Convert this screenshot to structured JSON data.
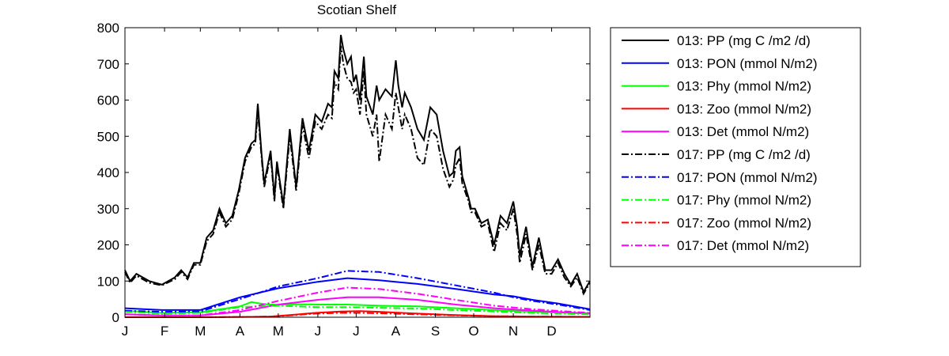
{
  "chart_data": {
    "type": "line",
    "title": "Scotian Shelf",
    "xlabel": "",
    "ylabel": "",
    "ylim": [
      0,
      800
    ],
    "yticks": [
      0,
      100,
      200,
      300,
      400,
      500,
      600,
      700,
      800
    ],
    "xlim": [
      1,
      365
    ],
    "month_ticks": [
      {
        "day": 1,
        "label": "J"
      },
      {
        "day": 32,
        "label": "F"
      },
      {
        "day": 60,
        "label": "M"
      },
      {
        "day": 91,
        "label": "A"
      },
      {
        "day": 121,
        "label": "M"
      },
      {
        "day": 152,
        "label": "J"
      },
      {
        "day": 182,
        "label": "J"
      },
      {
        "day": 213,
        "label": "A"
      },
      {
        "day": 244,
        "label": "S"
      },
      {
        "day": 274,
        "label": "O"
      },
      {
        "day": 305,
        "label": "N"
      },
      {
        "day": 335,
        "label": "D"
      }
    ],
    "legend_position": "outside-right",
    "grid": false,
    "series": [
      {
        "name": "013: PP (mg C /m2 /d)",
        "color": "#000000",
        "style": "solid",
        "x": [
          1,
          5,
          10,
          20,
          30,
          40,
          45,
          50,
          55,
          60,
          65,
          70,
          75,
          80,
          85,
          90,
          95,
          100,
          103,
          105,
          108,
          110,
          115,
          118,
          120,
          125,
          130,
          135,
          140,
          145,
          150,
          155,
          160,
          163,
          165,
          168,
          170,
          172,
          175,
          178,
          180,
          182,
          185,
          188,
          190,
          195,
          198,
          200,
          205,
          210,
          213,
          215,
          218,
          220,
          225,
          230,
          235,
          240,
          245,
          250,
          255,
          258,
          260,
          263,
          265,
          270,
          272,
          275,
          280,
          285,
          290,
          295,
          300,
          305,
          308,
          310,
          315,
          320,
          325,
          330,
          335,
          340,
          345,
          350,
          355,
          360,
          365
        ],
        "y": [
          130,
          100,
          120,
          100,
          90,
          110,
          130,
          110,
          150,
          150,
          220,
          240,
          300,
          260,
          280,
          350,
          440,
          480,
          490,
          590,
          450,
          370,
          460,
          330,
          430,
          310,
          520,
          360,
          550,
          460,
          560,
          540,
          590,
          580,
          680,
          660,
          780,
          740,
          700,
          720,
          650,
          670,
          600,
          720,
          610,
          560,
          640,
          600,
          630,
          610,
          710,
          640,
          580,
          620,
          580,
          520,
          490,
          580,
          560,
          460,
          390,
          400,
          460,
          470,
          390,
          330,
          300,
          300,
          260,
          270,
          200,
          280,
          260,
          320,
          250,
          170,
          250,
          140,
          220,
          130,
          130,
          160,
          120,
          90,
          120,
          70,
          100
        ]
      },
      {
        "name": "013: PON (mmol N/m2)",
        "color": "#0000ff",
        "style": "solid",
        "x": [
          1,
          30,
          60,
          91,
          121,
          152,
          175,
          200,
          230,
          260,
          290,
          305,
          320,
          340,
          365
        ],
        "y": [
          25,
          20,
          20,
          55,
          80,
          98,
          108,
          102,
          92,
          78,
          63,
          58,
          48,
          38,
          22
        ]
      },
      {
        "name": "013: Phy (mmol N/m2)",
        "color": "#00ff00",
        "style": "solid",
        "x": [
          1,
          30,
          60,
          91,
          100,
          110,
          121,
          135,
          152,
          175,
          200,
          230,
          260,
          290,
          320,
          365
        ],
        "y": [
          18,
          12,
          14,
          30,
          42,
          36,
          34,
          36,
          35,
          35,
          32,
          30,
          25,
          20,
          15,
          10
        ]
      },
      {
        "name": "013: Zoo (mmol N/m2)",
        "color": "#ff0000",
        "style": "solid",
        "x": [
          1,
          60,
          100,
          115,
          130,
          150,
          170,
          185,
          200,
          230,
          260,
          290,
          320,
          365
        ],
        "y": [
          0,
          0,
          1,
          2,
          6,
          12,
          16,
          17,
          15,
          10,
          6,
          3,
          2,
          1
        ]
      },
      {
        "name": "013: Det (mmol N/m2)",
        "color": "#ff00ff",
        "style": "solid",
        "x": [
          1,
          30,
          60,
          91,
          121,
          152,
          175,
          200,
          230,
          260,
          290,
          320,
          365
        ],
        "y": [
          8,
          5,
          5,
          15,
          35,
          48,
          55,
          55,
          48,
          35,
          25,
          18,
          10
        ]
      },
      {
        "name": "017: PP (mg C /m2 /d)",
        "color": "#000000",
        "style": "dashdot",
        "x": [
          1,
          5,
          10,
          20,
          30,
          40,
          45,
          50,
          55,
          60,
          65,
          70,
          75,
          80,
          85,
          90,
          95,
          100,
          103,
          105,
          108,
          110,
          115,
          118,
          120,
          125,
          130,
          135,
          140,
          145,
          150,
          155,
          160,
          163,
          165,
          168,
          170,
          172,
          175,
          178,
          180,
          182,
          185,
          188,
          190,
          195,
          198,
          200,
          205,
          210,
          213,
          215,
          218,
          220,
          225,
          230,
          235,
          240,
          245,
          250,
          255,
          258,
          260,
          263,
          265,
          270,
          272,
          275,
          280,
          285,
          290,
          295,
          300,
          305,
          308,
          310,
          315,
          320,
          325,
          330,
          335,
          340,
          345,
          350,
          355,
          360,
          365
        ],
        "y": [
          125,
          95,
          115,
          95,
          88,
          105,
          125,
          105,
          145,
          145,
          210,
          230,
          290,
          250,
          270,
          340,
          430,
          470,
          480,
          570,
          440,
          360,
          450,
          320,
          420,
          300,
          500,
          350,
          530,
          440,
          540,
          520,
          560,
          550,
          650,
          630,
          750,
          700,
          660,
          650,
          620,
          630,
          560,
          680,
          560,
          500,
          560,
          430,
          560,
          520,
          620,
          580,
          520,
          560,
          520,
          440,
          420,
          520,
          500,
          410,
          360,
          380,
          420,
          440,
          370,
          320,
          290,
          290,
          250,
          260,
          180,
          260,
          240,
          300,
          230,
          150,
          230,
          130,
          200,
          120,
          120,
          150,
          110,
          85,
          110,
          65,
          95
        ]
      },
      {
        "name": "017: PON (mmol N/m2)",
        "color": "#0000ff",
        "style": "dashdot",
        "x": [
          1,
          30,
          60,
          91,
          121,
          152,
          175,
          200,
          230,
          260,
          290,
          305,
          320,
          340,
          365
        ],
        "y": [
          18,
          15,
          16,
          50,
          85,
          108,
          128,
          125,
          108,
          88,
          68,
          55,
          45,
          35,
          20
        ]
      },
      {
        "name": "017: Phy (mmol N/m2)",
        "color": "#00ff00",
        "style": "dashdot",
        "x": [
          1,
          30,
          60,
          91,
          121,
          152,
          175,
          200,
          230,
          260,
          290,
          320,
          365
        ],
        "y": [
          15,
          10,
          12,
          28,
          32,
          28,
          28,
          26,
          24,
          20,
          16,
          12,
          8
        ]
      },
      {
        "name": "017: Zoo (mmol N/m2)",
        "color": "#ff0000",
        "style": "dashdot",
        "x": [
          1,
          60,
          100,
          115,
          130,
          150,
          170,
          185,
          200,
          230,
          260,
          290,
          320,
          365
        ],
        "y": [
          0,
          0,
          1,
          2,
          5,
          10,
          12,
          12,
          11,
          8,
          5,
          3,
          2,
          1
        ]
      },
      {
        "name": "017: Det (mmol N/m2)",
        "color": "#ff00ff",
        "style": "dashdot",
        "x": [
          1,
          30,
          60,
          91,
          121,
          152,
          175,
          200,
          230,
          260,
          290,
          320,
          365
        ],
        "y": [
          8,
          5,
          5,
          20,
          45,
          68,
          82,
          78,
          65,
          48,
          32,
          22,
          12
        ]
      }
    ]
  }
}
